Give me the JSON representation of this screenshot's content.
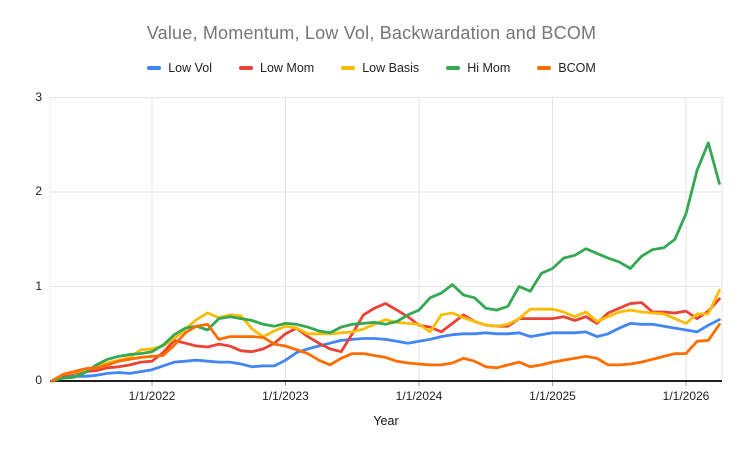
{
  "title": "Value, Momentum, Low Vol, Backwardation and BCOM",
  "legend": {
    "position": "top",
    "items": [
      {
        "label": "Low Vol",
        "color": "#4285F4"
      },
      {
        "label": "Low Mom",
        "color": "#EA4335"
      },
      {
        "label": "Low Basis",
        "color": "#FBBC04"
      },
      {
        "label": "Hi Mom",
        "color": "#34A853"
      },
      {
        "label": "BCOM",
        "color": "#FF6D01"
      }
    ]
  },
  "chart_data": {
    "type": "line",
    "title": "Value, Momentum, Low Vol, Backwardation and BCOM",
    "xlabel": "Year",
    "ylabel": "",
    "ylim": [
      0,
      3
    ],
    "y_ticks": [
      0,
      1,
      2,
      3
    ],
    "x_tick_labels": [
      "1/1/2022",
      "1/1/2023",
      "1/1/2024",
      "1/1/2025",
      "1/1/2026"
    ],
    "grid": true,
    "x": [
      "2021-04",
      "2021-05",
      "2021-06",
      "2021-07",
      "2021-08",
      "2021-09",
      "2021-10",
      "2021-11",
      "2021-12",
      "2022-01",
      "2022-02",
      "2022-03",
      "2022-04",
      "2022-05",
      "2022-06",
      "2022-07",
      "2022-08",
      "2022-09",
      "2022-10",
      "2022-11",
      "2022-12",
      "2023-01",
      "2023-02",
      "2023-03",
      "2023-04",
      "2023-05",
      "2023-06",
      "2023-07",
      "2023-08",
      "2023-09",
      "2023-10",
      "2023-11",
      "2023-12",
      "2024-01",
      "2024-02",
      "2024-03",
      "2024-04",
      "2024-05",
      "2024-06",
      "2024-07",
      "2024-08",
      "2024-09",
      "2024-10",
      "2024-11",
      "2024-12",
      "2025-01",
      "2025-02",
      "2025-03",
      "2025-04",
      "2025-05",
      "2025-06",
      "2025-07",
      "2025-08",
      "2025-09",
      "2025-10",
      "2025-11",
      "2025-12",
      "2026-01",
      "2026-02",
      "2026-03",
      "2026-04"
    ],
    "series": [
      {
        "name": "Low Vol",
        "color": "#4285F4",
        "values": [
          0,
          0.04,
          0.05,
          0.05,
          0.06,
          0.08,
          0.09,
          0.08,
          0.1,
          0.12,
          0.16,
          0.2,
          0.21,
          0.22,
          0.21,
          0.2,
          0.2,
          0.18,
          0.15,
          0.16,
          0.16,
          0.22,
          0.3,
          0.34,
          0.37,
          0.4,
          0.43,
          0.44,
          0.45,
          0.45,
          0.44,
          0.42,
          0.4,
          0.42,
          0.44,
          0.47,
          0.49,
          0.5,
          0.5,
          0.51,
          0.5,
          0.5,
          0.51,
          0.47,
          0.49,
          0.51,
          0.51,
          0.51,
          0.52,
          0.47,
          0.5,
          0.56,
          0.61,
          0.6,
          0.6,
          0.58,
          0.56,
          0.54,
          0.52,
          0.59,
          0.65
        ]
      },
      {
        "name": "Low Mom",
        "color": "#EA4335",
        "values": [
          0,
          0.06,
          0.08,
          0.1,
          0.11,
          0.14,
          0.15,
          0.17,
          0.2,
          0.21,
          0.3,
          0.43,
          0.4,
          0.37,
          0.36,
          0.39,
          0.37,
          0.32,
          0.31,
          0.34,
          0.4,
          0.5,
          0.56,
          0.47,
          0.4,
          0.34,
          0.31,
          0.5,
          0.7,
          0.77,
          0.82,
          0.75,
          0.68,
          0.59,
          0.57,
          0.52,
          0.61,
          0.7,
          0.63,
          0.59,
          0.58,
          0.58,
          0.66,
          0.66,
          0.66,
          0.66,
          0.68,
          0.64,
          0.68,
          0.61,
          0.72,
          0.77,
          0.82,
          0.83,
          0.73,
          0.73,
          0.72,
          0.74,
          0.66,
          0.74,
          0.87
        ]
      },
      {
        "name": "Low Basis",
        "color": "#FBBC04",
        "values": [
          0,
          0.07,
          0.09,
          0.12,
          0.15,
          0.19,
          0.22,
          0.25,
          0.33,
          0.34,
          0.37,
          0.45,
          0.55,
          0.65,
          0.72,
          0.67,
          0.7,
          0.69,
          0.55,
          0.47,
          0.53,
          0.58,
          0.56,
          0.5,
          0.5,
          0.5,
          0.51,
          0.52,
          0.55,
          0.6,
          0.65,
          0.62,
          0.61,
          0.6,
          0.52,
          0.7,
          0.72,
          0.67,
          0.63,
          0.59,
          0.58,
          0.6,
          0.66,
          0.76,
          0.76,
          0.76,
          0.73,
          0.68,
          0.73,
          0.63,
          0.68,
          0.73,
          0.75,
          0.73,
          0.72,
          0.71,
          0.66,
          0.61,
          0.71,
          0.71,
          0.96
        ]
      },
      {
        "name": "Hi Mom",
        "color": "#34A853",
        "values": [
          0,
          0.03,
          0.04,
          0.09,
          0.17,
          0.23,
          0.26,
          0.28,
          0.29,
          0.31,
          0.38,
          0.49,
          0.56,
          0.58,
          0.54,
          0.66,
          0.68,
          0.66,
          0.64,
          0.6,
          0.58,
          0.61,
          0.6,
          0.57,
          0.53,
          0.51,
          0.57,
          0.6,
          0.61,
          0.62,
          0.6,
          0.63,
          0.7,
          0.75,
          0.88,
          0.93,
          1.02,
          0.91,
          0.88,
          0.77,
          0.75,
          0.79,
          1.0,
          0.95,
          1.14,
          1.19,
          1.3,
          1.33,
          1.4,
          1.35,
          1.3,
          1.26,
          1.19,
          1.32,
          1.39,
          1.41,
          1.5,
          1.77,
          2.23,
          2.52,
          2.09
        ]
      },
      {
        "name": "BCOM",
        "color": "#FF6D01",
        "values": [
          0,
          0.07,
          0.1,
          0.13,
          0.14,
          0.17,
          0.21,
          0.23,
          0.25,
          0.26,
          0.27,
          0.38,
          0.51,
          0.58,
          0.6,
          0.44,
          0.47,
          0.47,
          0.47,
          0.46,
          0.39,
          0.37,
          0.33,
          0.29,
          0.22,
          0.17,
          0.24,
          0.29,
          0.29,
          0.27,
          0.25,
          0.21,
          0.19,
          0.18,
          0.17,
          0.17,
          0.19,
          0.24,
          0.21,
          0.15,
          0.14,
          0.17,
          0.2,
          0.15,
          0.17,
          0.2,
          0.22,
          0.24,
          0.26,
          0.24,
          0.17,
          0.17,
          0.18,
          0.2,
          0.23,
          0.26,
          0.29,
          0.29,
          0.42,
          0.43,
          0.6
        ]
      }
    ]
  }
}
